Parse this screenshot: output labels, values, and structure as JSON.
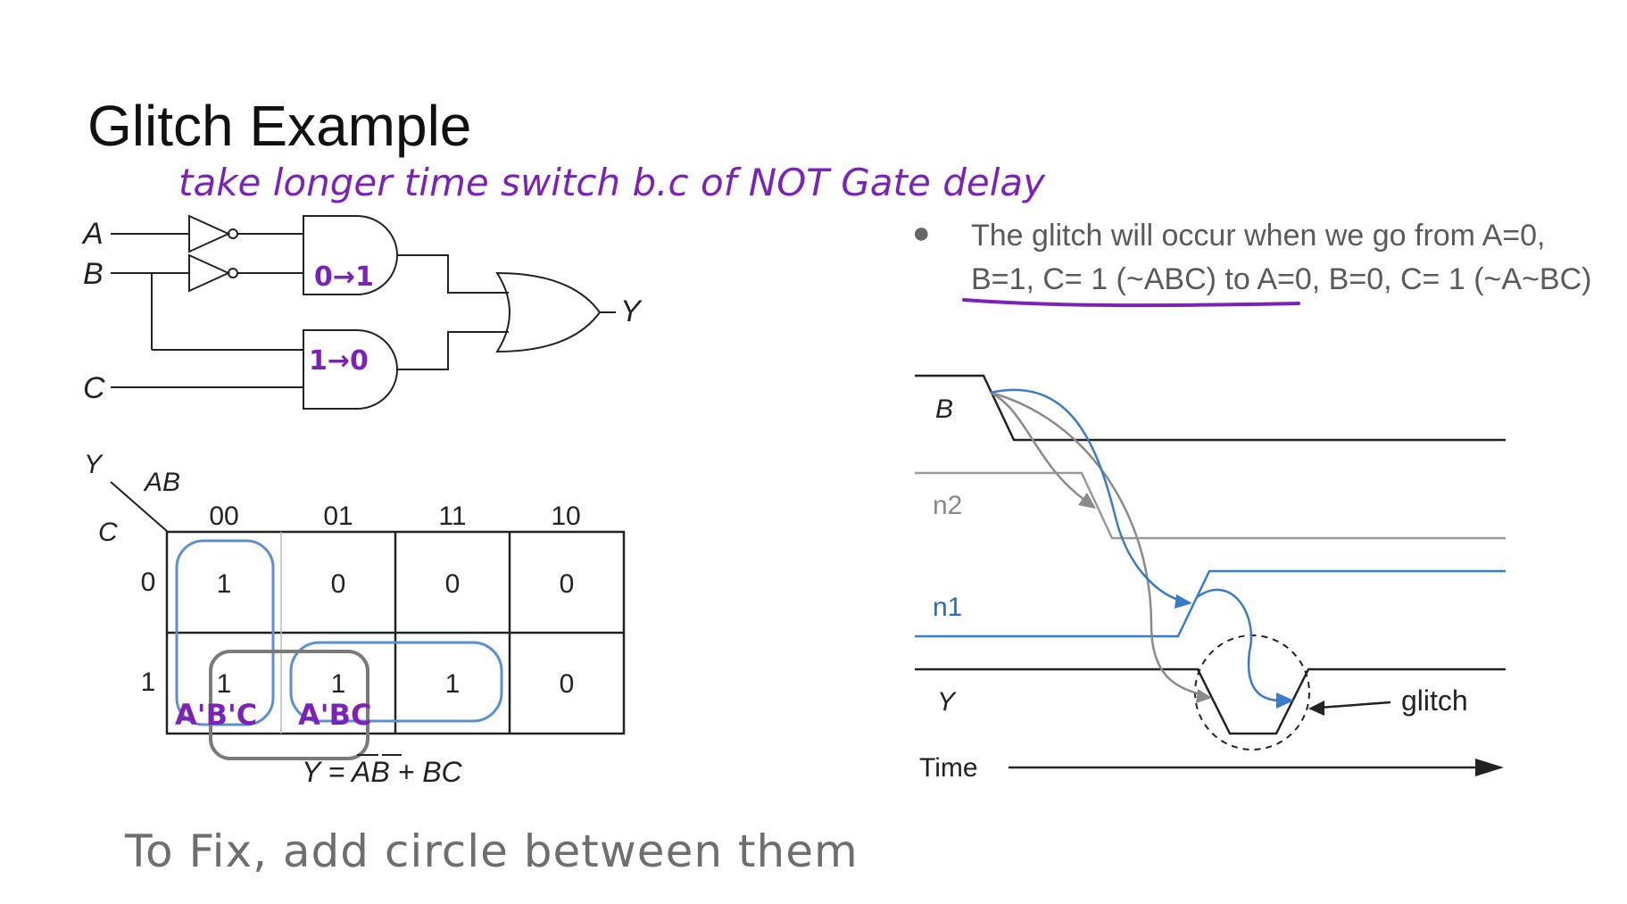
{
  "title": "Glitch Example",
  "annotations": {
    "top_note": "take longer time switch b.c of NOT Gate delay",
    "upper_and": "0→1",
    "lower_and": "1→0",
    "kmap_term_1": "A'B'C",
    "kmap_term_2": "A'BC",
    "fix_note": "To Fix, add circle between them"
  },
  "circuit": {
    "input_a": "A",
    "input_b": "B",
    "input_c": "C",
    "output": "Y"
  },
  "kmap": {
    "corner_out": "Y",
    "corner_cols": "AB",
    "corner_rows": "C",
    "columns": [
      "00",
      "01",
      "11",
      "10"
    ],
    "rows": [
      "0",
      "1"
    ],
    "cells": [
      [
        "1",
        "0",
        "0",
        "0"
      ],
      [
        "1",
        "1",
        "1",
        "0"
      ]
    ],
    "equation": "Y = AB + BC"
  },
  "bullet": {
    "text": "The glitch will occur when we go from A=0, B=1, C= 1 (~ABC) to A=0, B=0,    C= 1 (~A~BC)"
  },
  "timing": {
    "signals": [
      "B",
      "n2",
      "n1",
      "Y"
    ],
    "time_label": "Time",
    "glitch_label": "glitch"
  },
  "colors": {
    "purple_ink": "#7b22b8",
    "blue_wave": "#3a7bc8",
    "gray_ink": "#6e6e6e"
  }
}
